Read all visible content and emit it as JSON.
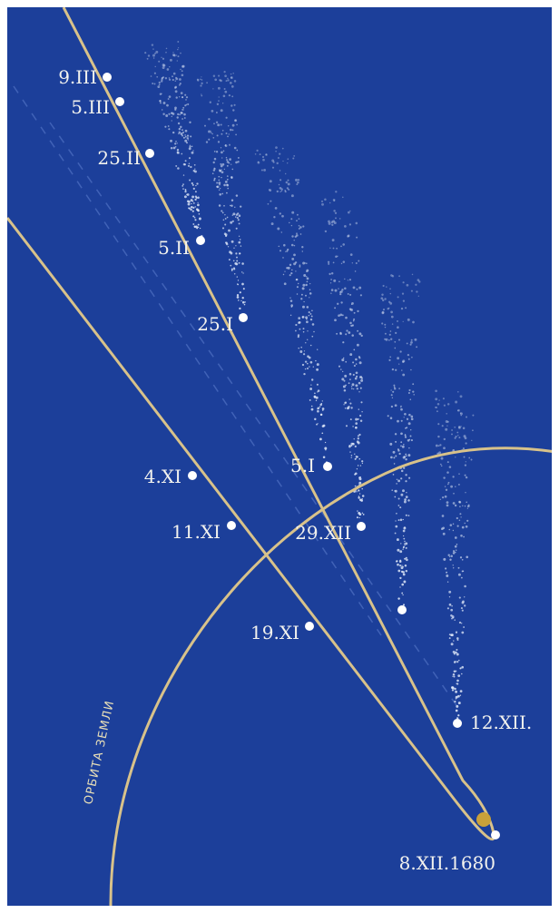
{
  "diagram": {
    "background": "#1c3f9a",
    "frame_color": "#ffffff",
    "orbit_color": "#d8c28a",
    "tail_color": "#dfe8f8",
    "sun_color": "#c9a13a",
    "earth_orbit_label": "ОРБИТА ЗЕМЛИ",
    "inbound_dates": [
      {
        "label": "4.XI"
      },
      {
        "label": "11.XI"
      },
      {
        "label": "19.XI"
      }
    ],
    "perihelion": {
      "label": "8.XII.1680"
    },
    "outbound_dates": [
      {
        "label": "12.XII."
      },
      {
        "label": "29.XII"
      },
      {
        "label": "5.I"
      },
      {
        "label": "25.I"
      },
      {
        "label": "5.II"
      },
      {
        "label": "25.II"
      },
      {
        "label": "5.III"
      },
      {
        "label": "9.III"
      }
    ]
  }
}
